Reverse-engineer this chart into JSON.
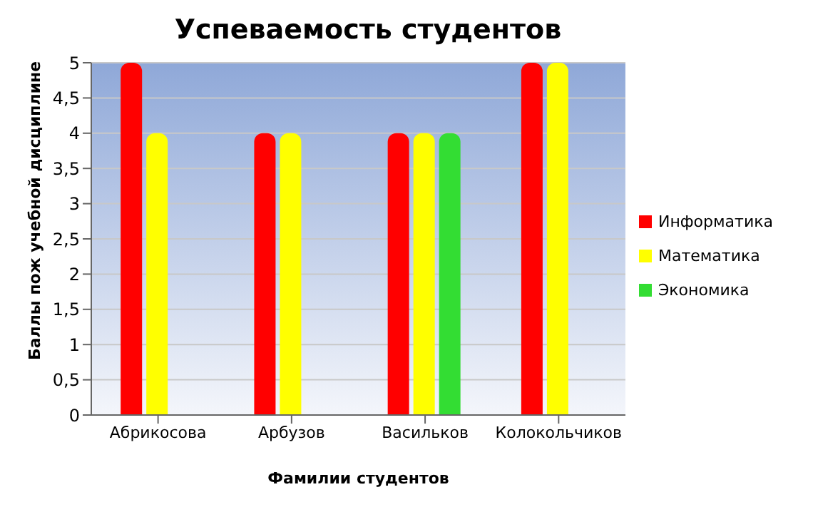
{
  "chart_data": {
    "type": "bar",
    "title": "Успеваемость студентов",
    "xlabel": "Фамилии студентов",
    "ylabel": "Баллы пож учебной дисциплине",
    "categories": [
      "Абрикосова",
      "Арбузов",
      "Васильков",
      "Колокольчиков"
    ],
    "series": [
      {
        "name": "Информатика",
        "color": "#ff0000",
        "values": [
          5,
          4,
          4,
          5
        ]
      },
      {
        "name": "Математика",
        "color": "#ffff00",
        "values": [
          4,
          4,
          4,
          5
        ]
      },
      {
        "name": "Экономика",
        "color": "#33dd33",
        "values": [
          null,
          null,
          4,
          null
        ]
      }
    ],
    "ylim": [
      0,
      5
    ],
    "yticks": [
      0,
      {
        "value": 0.5,
        "label": "0,5"
      },
      1,
      {
        "value": 1.5,
        "label": "1,5"
      },
      2,
      {
        "value": 2.5,
        "label": "2,5"
      },
      3,
      {
        "value": 3.5,
        "label": "3,5"
      },
      4,
      {
        "value": 4.5,
        "label": "4,5"
      },
      5
    ],
    "grid": "y",
    "legend": "right"
  }
}
